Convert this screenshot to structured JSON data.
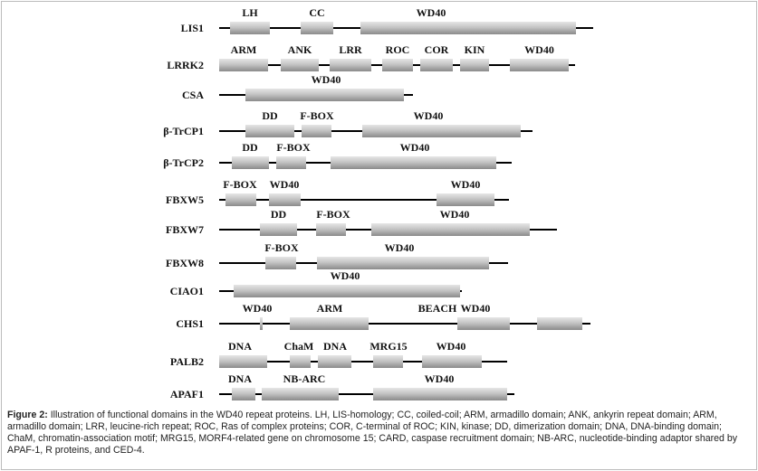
{
  "proteins": [
    {
      "name": "LIS1",
      "domains": [
        {
          "label": "LH"
        },
        {
          "label": "CC"
        },
        {
          "label": "WD40"
        }
      ]
    },
    {
      "name": "LRRK2",
      "domains": [
        {
          "label": "ARM"
        },
        {
          "label": "ANK"
        },
        {
          "label": "LRR"
        },
        {
          "label": "ROC"
        },
        {
          "label": "COR"
        },
        {
          "label": "KIN"
        },
        {
          "label": "WD40"
        }
      ]
    },
    {
      "name": "CSA",
      "domains": [
        {
          "label": "WD40"
        }
      ]
    },
    {
      "name": "β-TrCP1",
      "domains": [
        {
          "label": "DD"
        },
        {
          "label": "F-BOX"
        },
        {
          "label": "WD40"
        }
      ]
    },
    {
      "name": "β-TrCP2",
      "domains": [
        {
          "label": "DD"
        },
        {
          "label": "F-BOX"
        },
        {
          "label": "WD40"
        }
      ]
    },
    {
      "name": "FBXW5",
      "domains": [
        {
          "label": "F-BOX"
        },
        {
          "label": "WD40"
        },
        {
          "label": "WD40"
        }
      ]
    },
    {
      "name": "FBXW7",
      "domains": [
        {
          "label": "DD"
        },
        {
          "label": "F-BOX"
        },
        {
          "label": "WD40"
        }
      ]
    },
    {
      "name": "FBXW8",
      "domains": [
        {
          "label": "F-BOX"
        },
        {
          "label": "WD40"
        }
      ]
    },
    {
      "name": "CIAO1",
      "domains": [
        {
          "label": "WD40"
        }
      ]
    },
    {
      "name": "CHS1",
      "domains": [
        {
          "label": "WD40"
        },
        {
          "label": "ARM"
        },
        {
          "label": "BEACH"
        },
        {
          "label": "WD40"
        }
      ]
    },
    {
      "name": "PALB2",
      "domains": [
        {
          "label": "DNA"
        },
        {
          "label": "ChaM"
        },
        {
          "label": "DNA"
        },
        {
          "label": "MRG15"
        },
        {
          "label": "WD40"
        }
      ]
    },
    {
      "name": "APAF1",
      "domains": [
        {
          "label": "DNA"
        },
        {
          "label": "NB-ARC"
        },
        {
          "label": "WD40"
        }
      ]
    }
  ],
  "caption": {
    "label": "Figure 2:",
    "text": "Illustration of functional domains in the WD40 repeat proteins. LH, LIS-homology; CC, coiled-coil; ARM, armadillo domain; ANK, ankyrin repeat domain; ARM, armadillo domain; LRR, leucine-rich repeat; ROC, Ras of complex proteins; COR, C-terminal of ROC; KIN, kinase; DD, dimerization domain; DNA, DNA-binding domain; ChaM, chromatin-association motif; MRG15, MORF4-related gene on chromosome 15; CARD, caspase recruitment domain; NB-ARC, nucleotide-binding adaptor shared by APAF-1, R proteins, and CED-4."
  }
}
